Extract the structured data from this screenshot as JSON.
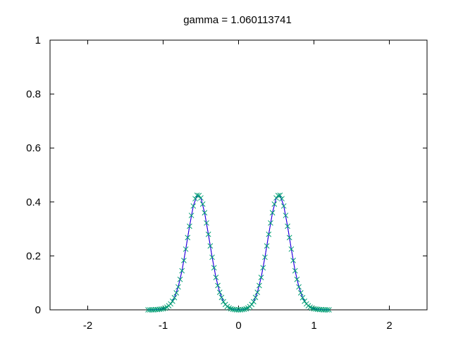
{
  "chart_data": {
    "type": "scatter",
    "title": "gamma = 1.060113741",
    "xlabel": "",
    "ylabel": "",
    "xlim": [
      -2.5,
      2.5
    ],
    "ylim": [
      0,
      1
    ],
    "xticks": [
      -2,
      -1,
      0,
      1,
      2
    ],
    "yticks": [
      0,
      0.2,
      0.4,
      0.6,
      0.8,
      1
    ],
    "xtick_labels": [
      "-2",
      "-1",
      "0",
      "1",
      "2"
    ],
    "ytick_labels": [
      "0",
      "0.2",
      "0.4",
      "0.6",
      "0.8",
      "1"
    ],
    "grid": false,
    "legend": "none",
    "series": [
      {
        "style": "line",
        "color": "#ff0000",
        "x": [
          -1.2,
          -1.1,
          -1.0,
          -0.95,
          -0.9,
          -0.85,
          -0.8,
          -0.75,
          -0.7,
          -0.65,
          -0.6,
          -0.55,
          -0.5,
          -0.45,
          -0.4,
          -0.35,
          -0.3,
          -0.25,
          -0.2,
          -0.15,
          -0.1,
          -0.05,
          0.0,
          0.05,
          0.1,
          0.15,
          0.2,
          0.25,
          0.3,
          0.35,
          0.4,
          0.45,
          0.5,
          0.55,
          0.6,
          0.65,
          0.7,
          0.75,
          0.8,
          0.85,
          0.9,
          0.95,
          1.0,
          1.1,
          1.2
        ],
        "y": [
          0.0,
          0.001,
          0.004,
          0.01,
          0.022,
          0.045,
          0.085,
          0.145,
          0.225,
          0.31,
          0.385,
          0.425,
          0.415,
          0.36,
          0.28,
          0.195,
          0.12,
          0.065,
          0.03,
          0.012,
          0.004,
          0.001,
          0.0,
          0.001,
          0.004,
          0.012,
          0.03,
          0.065,
          0.12,
          0.195,
          0.28,
          0.36,
          0.415,
          0.425,
          0.385,
          0.31,
          0.225,
          0.145,
          0.085,
          0.045,
          0.022,
          0.01,
          0.004,
          0.001,
          0.0
        ]
      },
      {
        "style": "line",
        "color": "#0000ff",
        "x": [
          -1.2,
          -1.1,
          -1.0,
          -0.95,
          -0.9,
          -0.85,
          -0.8,
          -0.75,
          -0.7,
          -0.65,
          -0.6,
          -0.55,
          -0.5,
          -0.45,
          -0.4,
          -0.35,
          -0.3,
          -0.25,
          -0.2,
          -0.15,
          -0.1,
          -0.05,
          0.0,
          0.05,
          0.1,
          0.15,
          0.2,
          0.25,
          0.3,
          0.35,
          0.4,
          0.45,
          0.5,
          0.55,
          0.6,
          0.65,
          0.7,
          0.75,
          0.8,
          0.85,
          0.9,
          0.95,
          1.0,
          1.1,
          1.2
        ],
        "y": [
          0.0,
          0.001,
          0.004,
          0.01,
          0.022,
          0.045,
          0.085,
          0.145,
          0.225,
          0.31,
          0.385,
          0.425,
          0.415,
          0.36,
          0.28,
          0.195,
          0.12,
          0.065,
          0.03,
          0.012,
          0.004,
          0.001,
          0.0,
          0.001,
          0.004,
          0.012,
          0.03,
          0.065,
          0.12,
          0.195,
          0.28,
          0.36,
          0.415,
          0.425,
          0.385,
          0.31,
          0.225,
          0.145,
          0.085,
          0.045,
          0.022,
          0.01,
          0.004,
          0.001,
          0.0
        ]
      },
      {
        "style": "points",
        "marker": "x",
        "color": "#009e73",
        "x": [
          -1.2,
          -1.175,
          -1.15,
          -1.125,
          -1.1,
          -1.075,
          -1.05,
          -1.025,
          -1.0,
          -0.975,
          -0.95,
          -0.925,
          -0.9,
          -0.875,
          -0.85,
          -0.825,
          -0.8,
          -0.775,
          -0.75,
          -0.725,
          -0.7,
          -0.675,
          -0.65,
          -0.625,
          -0.6,
          -0.575,
          -0.55,
          -0.525,
          -0.5,
          -0.475,
          -0.45,
          -0.425,
          -0.4,
          -0.375,
          -0.35,
          -0.325,
          -0.3,
          -0.275,
          -0.25,
          -0.225,
          -0.2,
          -0.175,
          -0.15,
          -0.125,
          -0.1,
          -0.075,
          -0.05,
          -0.025,
          0.0,
          0.025,
          0.05,
          0.075,
          0.1,
          0.125,
          0.15,
          0.175,
          0.2,
          0.225,
          0.25,
          0.275,
          0.3,
          0.325,
          0.35,
          0.375,
          0.4,
          0.425,
          0.45,
          0.475,
          0.5,
          0.525,
          0.55,
          0.575,
          0.6,
          0.625,
          0.65,
          0.675,
          0.7,
          0.725,
          0.75,
          0.775,
          0.8,
          0.825,
          0.85,
          0.875,
          0.9,
          0.925,
          0.95,
          0.975,
          1.0,
          1.025,
          1.05,
          1.075,
          1.1,
          1.125,
          1.15,
          1.175,
          1.2
        ],
        "y": [
          0.0,
          0.0,
          0.0,
          0.0,
          0.001,
          0.001,
          0.002,
          0.003,
          0.004,
          0.006,
          0.01,
          0.015,
          0.022,
          0.032,
          0.045,
          0.063,
          0.085,
          0.113,
          0.145,
          0.183,
          0.225,
          0.268,
          0.31,
          0.35,
          0.385,
          0.412,
          0.425,
          0.424,
          0.415,
          0.392,
          0.36,
          0.322,
          0.28,
          0.237,
          0.195,
          0.156,
          0.12,
          0.09,
          0.065,
          0.046,
          0.03,
          0.02,
          0.012,
          0.007,
          0.004,
          0.002,
          0.001,
          0.0,
          0.0,
          0.0,
          0.001,
          0.002,
          0.004,
          0.007,
          0.012,
          0.02,
          0.03,
          0.046,
          0.065,
          0.09,
          0.12,
          0.156,
          0.195,
          0.237,
          0.28,
          0.322,
          0.36,
          0.392,
          0.415,
          0.424,
          0.425,
          0.412,
          0.385,
          0.35,
          0.31,
          0.268,
          0.225,
          0.183,
          0.145,
          0.113,
          0.085,
          0.063,
          0.045,
          0.032,
          0.022,
          0.015,
          0.01,
          0.006,
          0.004,
          0.003,
          0.002,
          0.001,
          0.001,
          0.0,
          0.0,
          0.0,
          0.0
        ]
      }
    ]
  }
}
